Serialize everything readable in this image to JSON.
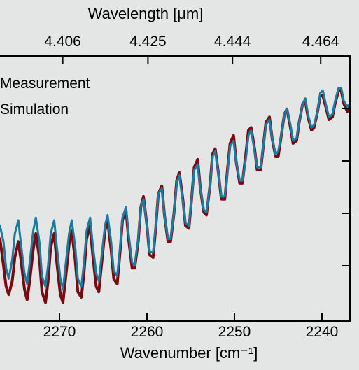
{
  "chart_data": {
    "type": "line",
    "title": "",
    "xlabel": "Wavenumber [cm⁻¹]",
    "x2label": "Wavelength [μm]",
    "ylabel": "",
    "xlim": [
      2276.8,
      2236.8
    ],
    "x_ticks": [
      2270,
      2260,
      2250,
      2240
    ],
    "x_tick_labels": [
      "2270",
      "2260",
      "2250",
      "2240"
    ],
    "x2_ticks": [
      4.406,
      4.425,
      4.444,
      4.464
    ],
    "x2_tick_labels": [
      "4.406",
      "4.425",
      "4.444",
      "4.464"
    ],
    "ylim": [
      0,
      1
    ],
    "grid": false,
    "legend": "top-left",
    "series": [
      {
        "name": "Measurement",
        "color": "#7a0a12",
        "x": [
          2276.8,
          2276.4,
          2276.1,
          2275.8,
          2275.4,
          2275.1,
          2274.7,
          2274.4,
          2274.0,
          2273.7,
          2273.4,
          2273.0,
          2272.7,
          2272.3,
          2272.0,
          2271.6,
          2271.3,
          2271.0,
          2270.6,
          2270.3,
          2269.9,
          2269.6,
          2269.3,
          2268.9,
          2268.6,
          2268.2,
          2267.9,
          2267.5,
          2267.2,
          2266.9,
          2266.5,
          2266.2,
          2265.8,
          2265.5,
          2265.2,
          2264.8,
          2264.5,
          2264.1,
          2263.8,
          2263.4,
          2263.1,
          2262.8,
          2262.4,
          2262.1,
          2261.7,
          2261.4,
          2261.0,
          2260.7,
          2260.4,
          2260.0,
          2259.7,
          2259.3,
          2259.0,
          2258.7,
          2258.3,
          2258.0,
          2257.6,
          2257.3,
          2256.9,
          2256.6,
          2256.3,
          2255.9,
          2255.6,
          2255.2,
          2254.9,
          2254.6,
          2254.2,
          2253.9,
          2253.5,
          2253.2,
          2252.8,
          2252.5,
          2252.2,
          2251.8,
          2251.5,
          2251.1,
          2250.8,
          2250.5,
          2250.1,
          2249.8,
          2249.4,
          2249.1,
          2248.7,
          2248.4,
          2248.1,
          2247.7,
          2247.4,
          2247.0,
          2246.7,
          2246.4,
          2246.0,
          2245.7,
          2245.3,
          2245.0,
          2244.6,
          2244.3,
          2244.0,
          2243.6,
          2243.3,
          2242.9,
          2242.6,
          2242.2,
          2241.9,
          2241.6,
          2241.2,
          2240.9,
          2240.5,
          2240.2,
          2239.9,
          2239.5,
          2239.2,
          2238.8,
          2238.5,
          2238.1,
          2237.8,
          2237.5,
          2237.1,
          2236.8
        ],
        "y": [
          0.31,
          0.21,
          0.13,
          0.1,
          0.15,
          0.24,
          0.3,
          0.23,
          0.12,
          0.08,
          0.15,
          0.27,
          0.33,
          0.24,
          0.11,
          0.07,
          0.15,
          0.28,
          0.33,
          0.22,
          0.1,
          0.07,
          0.16,
          0.29,
          0.34,
          0.23,
          0.11,
          0.09,
          0.18,
          0.31,
          0.36,
          0.25,
          0.13,
          0.11,
          0.21,
          0.34,
          0.38,
          0.27,
          0.16,
          0.14,
          0.25,
          0.38,
          0.42,
          0.31,
          0.2,
          0.2,
          0.3,
          0.43,
          0.47,
          0.36,
          0.25,
          0.24,
          0.35,
          0.48,
          0.51,
          0.4,
          0.3,
          0.3,
          0.41,
          0.53,
          0.56,
          0.46,
          0.36,
          0.35,
          0.46,
          0.58,
          0.61,
          0.5,
          0.41,
          0.4,
          0.51,
          0.63,
          0.65,
          0.55,
          0.46,
          0.46,
          0.57,
          0.67,
          0.7,
          0.6,
          0.52,
          0.52,
          0.63,
          0.72,
          0.73,
          0.65,
          0.57,
          0.57,
          0.66,
          0.75,
          0.77,
          0.69,
          0.62,
          0.62,
          0.71,
          0.78,
          0.8,
          0.73,
          0.67,
          0.68,
          0.75,
          0.82,
          0.83,
          0.77,
          0.72,
          0.73,
          0.79,
          0.85,
          0.85,
          0.8,
          0.76,
          0.77,
          0.82,
          0.87,
          0.87,
          0.82,
          0.79,
          0.81
        ]
      },
      {
        "name": "Simulation",
        "color": "#1b7b9e",
        "x": [
          2276.8,
          2276.4,
          2276.1,
          2275.8,
          2275.4,
          2275.1,
          2274.7,
          2274.4,
          2274.0,
          2273.7,
          2273.4,
          2273.0,
          2272.7,
          2272.3,
          2272.0,
          2271.6,
          2271.3,
          2271.0,
          2270.6,
          2270.3,
          2269.9,
          2269.6,
          2269.3,
          2268.9,
          2268.6,
          2268.2,
          2267.9,
          2267.5,
          2267.2,
          2266.9,
          2266.5,
          2266.2,
          2265.8,
          2265.5,
          2265.2,
          2264.8,
          2264.5,
          2264.1,
          2263.8,
          2263.4,
          2263.1,
          2262.8,
          2262.4,
          2262.1,
          2261.7,
          2261.4,
          2261.0,
          2260.7,
          2260.4,
          2260.0,
          2259.7,
          2259.3,
          2259.0,
          2258.7,
          2258.3,
          2258.0,
          2257.6,
          2257.3,
          2256.9,
          2256.6,
          2256.3,
          2255.9,
          2255.6,
          2255.2,
          2254.9,
          2254.6,
          2254.2,
          2253.9,
          2253.5,
          2253.2,
          2252.8,
          2252.5,
          2252.2,
          2251.8,
          2251.5,
          2251.1,
          2250.8,
          2250.5,
          2250.1,
          2249.8,
          2249.4,
          2249.1,
          2248.7,
          2248.4,
          2248.1,
          2247.7,
          2247.4,
          2247.0,
          2246.7,
          2246.4,
          2246.0,
          2245.7,
          2245.3,
          2245.0,
          2244.6,
          2244.3,
          2244.0,
          2243.6,
          2243.3,
          2242.9,
          2242.6,
          2242.2,
          2241.9,
          2241.6,
          2241.2,
          2240.9,
          2240.5,
          2240.2,
          2239.9,
          2239.5,
          2239.2,
          2238.8,
          2238.5,
          2238.1,
          2237.8,
          2237.5,
          2237.1,
          2236.8
        ],
        "y": [
          0.36,
          0.3,
          0.2,
          0.16,
          0.23,
          0.33,
          0.38,
          0.29,
          0.18,
          0.14,
          0.22,
          0.34,
          0.39,
          0.3,
          0.17,
          0.13,
          0.21,
          0.33,
          0.38,
          0.28,
          0.16,
          0.12,
          0.21,
          0.33,
          0.38,
          0.28,
          0.16,
          0.13,
          0.22,
          0.34,
          0.39,
          0.29,
          0.18,
          0.15,
          0.24,
          0.36,
          0.4,
          0.3,
          0.19,
          0.17,
          0.27,
          0.39,
          0.43,
          0.33,
          0.22,
          0.21,
          0.31,
          0.43,
          0.46,
          0.36,
          0.26,
          0.26,
          0.36,
          0.48,
          0.5,
          0.4,
          0.31,
          0.31,
          0.41,
          0.52,
          0.55,
          0.45,
          0.37,
          0.36,
          0.46,
          0.57,
          0.59,
          0.5,
          0.42,
          0.41,
          0.51,
          0.62,
          0.64,
          0.55,
          0.47,
          0.47,
          0.56,
          0.66,
          0.68,
          0.6,
          0.53,
          0.53,
          0.61,
          0.7,
          0.72,
          0.64,
          0.58,
          0.58,
          0.66,
          0.74,
          0.76,
          0.69,
          0.63,
          0.64,
          0.71,
          0.78,
          0.8,
          0.74,
          0.68,
          0.69,
          0.75,
          0.82,
          0.84,
          0.78,
          0.73,
          0.74,
          0.79,
          0.86,
          0.87,
          0.81,
          0.77,
          0.78,
          0.83,
          0.88,
          0.88,
          0.83,
          0.81,
          0.82
        ]
      }
    ]
  }
}
